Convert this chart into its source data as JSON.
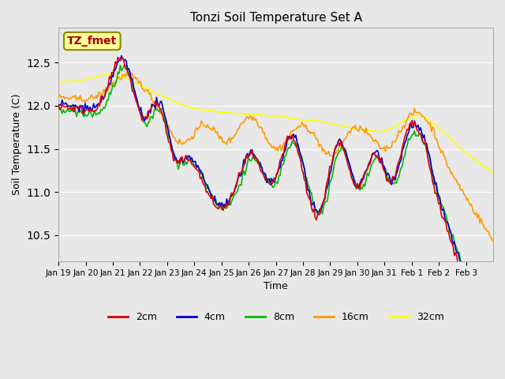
{
  "title": "Tonzi Soil Temperature Set A",
  "xlabel": "Time",
  "ylabel": "Soil Temperature (C)",
  "ylim": [
    10.2,
    12.9
  ],
  "annotation_text": "TZ_fmet",
  "annotation_box_color": "#ffff99",
  "annotation_text_color": "#aa0000",
  "background_color": "#e8e8e8",
  "plot_bg_color": "#e8e8e8",
  "colors": {
    "2cm": "#dd0000",
    "4cm": "#0000cc",
    "8cm": "#00bb00",
    "16cm": "#ff9900",
    "32cm": "#ffff00"
  },
  "linewidth": 1.2,
  "n_points": 360,
  "x_tick_labels": [
    "Jan 19",
    "Jan 20",
    "Jan 21",
    "Jan 22",
    "Jan 23",
    "Jan 24",
    "Jan 25",
    "Jan 26",
    "Jan 27",
    "Jan 28",
    "Jan 29",
    "Jan 30",
    "Jan 31",
    "Feb 1",
    "Feb 2",
    "Feb 3"
  ],
  "legend_labels": [
    "2cm",
    "4cm",
    "8cm",
    "16cm",
    "32cm"
  ]
}
